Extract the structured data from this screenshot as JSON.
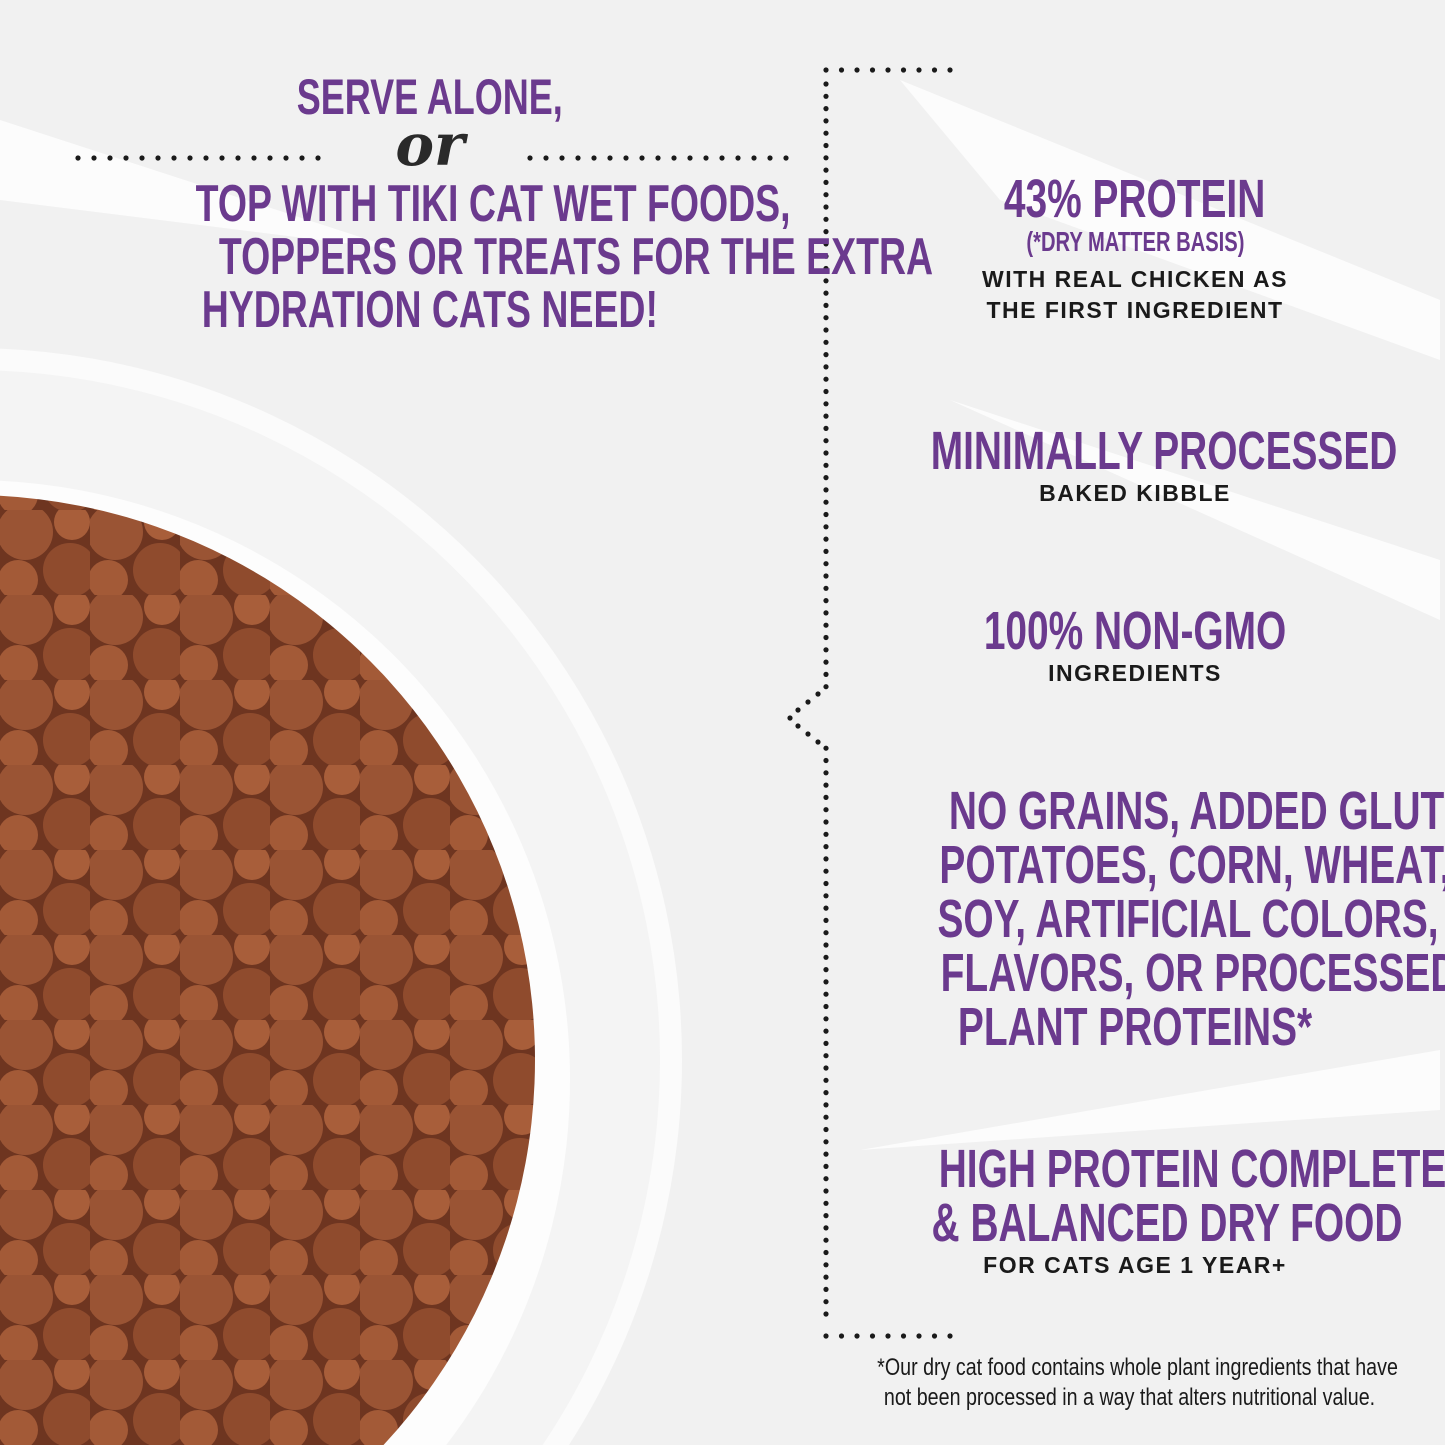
{
  "colors": {
    "accent": "#6b3a8e",
    "text": "#1a1a1a",
    "background": "#f1f1f1",
    "kibble": "#8a4a2c"
  },
  "left": {
    "headline": "SERVE ALONE,",
    "connector": "or",
    "subtext": [
      "TOP WITH TIKI CAT WET FOODS,",
      "TOPPERS OR TREATS FOR THE EXTRA",
      "HYDRATION CATS NEED!"
    ]
  },
  "features": [
    {
      "title": [
        "43% PROTEIN"
      ],
      "note": "(*DRY MATTER BASIS)",
      "detail": [
        "WITH REAL CHICKEN AS",
        "THE FIRST INGREDIENT"
      ]
    },
    {
      "title": [
        "MINIMALLY PROCESSED"
      ],
      "detail": [
        "BAKED KIBBLE"
      ]
    },
    {
      "title": [
        "100% NON-GMO"
      ],
      "detail": [
        "INGREDIENTS"
      ]
    },
    {
      "title": [
        "NO GRAINS, ADDED GLUTEN,",
        "POTATOES, CORN, WHEAT,",
        "SOY, ARTIFICIAL COLORS,",
        "FLAVORS, OR PROCESSED",
        "PLANT PROTEINS*"
      ]
    },
    {
      "title": [
        "HIGH PROTEIN COMPLETE",
        "& BALANCED DRY FOOD"
      ],
      "detail": [
        "FOR CATS AGE 1 YEAR+"
      ]
    }
  ],
  "footnote": [
    "*Our dry cat food contains whole plant ingredients that have",
    "not been processed in a way that alters nutritional value."
  ]
}
